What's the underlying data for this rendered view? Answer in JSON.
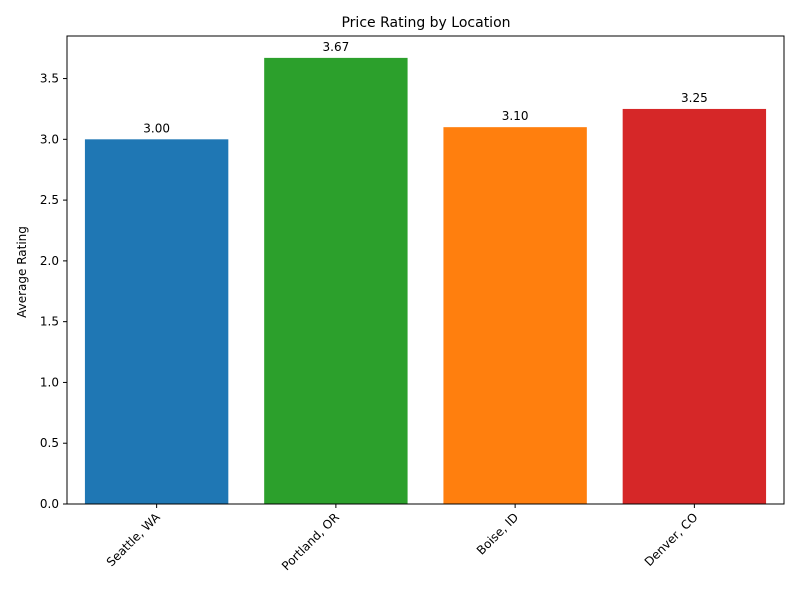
{
  "chart_data": {
    "type": "bar",
    "title": "Price Rating by Location",
    "xlabel": "",
    "ylabel": "Average Rating",
    "categories": [
      "Seattle, WA",
      "Portland, OR",
      "Boise, ID",
      "Denver, CO"
    ],
    "values": [
      3.0,
      3.67,
      3.1,
      3.25
    ],
    "data_labels": [
      "3.00",
      "3.67",
      "3.10",
      "3.25"
    ],
    "colors": [
      "#1f77b4",
      "#2ca02c",
      "#ff7f0e",
      "#d62728"
    ],
    "ylim": [
      0,
      3.85
    ],
    "yticks": [
      0.0,
      0.5,
      1.0,
      1.5,
      2.0,
      2.5,
      3.0,
      3.5
    ],
    "ytick_labels": [
      "0.0",
      "0.5",
      "1.0",
      "1.5",
      "2.0",
      "2.5",
      "3.0",
      "3.5"
    ],
    "xtick_rotation": 45,
    "grid": false,
    "legend": "none"
  }
}
